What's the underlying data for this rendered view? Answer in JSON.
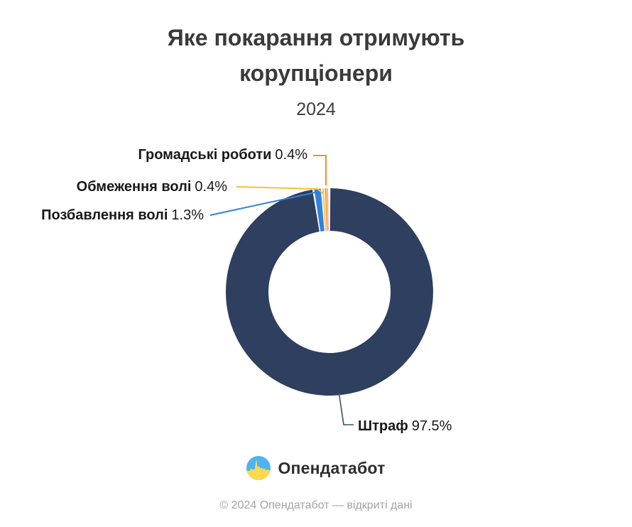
{
  "chart_data": {
    "type": "pie",
    "donut": true,
    "title": "Яке покарання отримують корупціонери",
    "subtitle": "2024",
    "unit": "%",
    "legend_position": "callout-labels",
    "segments": [
      {
        "label": "Штраф",
        "value": 97.5,
        "pct_label": "97.5%",
        "color": "#2e3f5f"
      },
      {
        "label": "Позбавлення волі",
        "value": 1.3,
        "pct_label": "1.3%",
        "color": "#3181dd"
      },
      {
        "label": "Обмеження волі",
        "value": 0.4,
        "pct_label": "0.4%",
        "color": "#fdbe33"
      },
      {
        "label": "Громадські роботи",
        "value": 0.4,
        "pct_label": "0.4%",
        "color": "#fb8c23"
      },
      {
        "label": "",
        "value": 0.2,
        "pct_label": "",
        "color": "#ef7f95"
      }
    ],
    "leader_line_color_main": "#3d4e6d"
  },
  "branding": {
    "logo_text": "Опендатабот",
    "flag_blue": "#4fb3f0",
    "flag_yellow": "#ffd84d"
  },
  "footer": {
    "text": "© 2024 Опендатабот — відкриті дані"
  }
}
